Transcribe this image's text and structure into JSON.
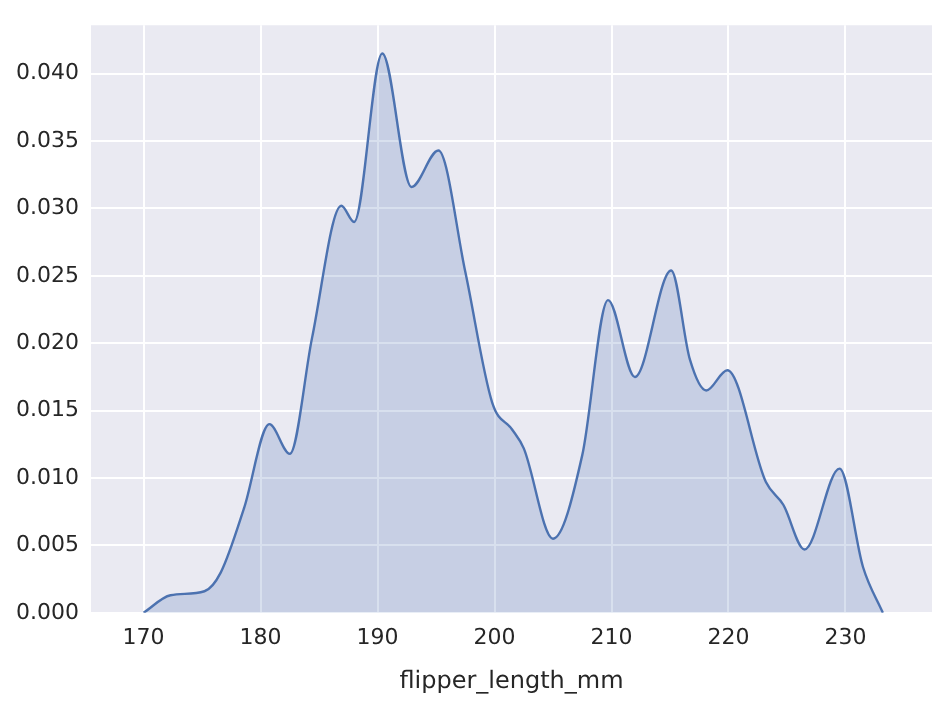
{
  "chart_data": {
    "type": "area",
    "xlabel": "flipper_length_mm",
    "x": [
      170,
      172.3,
      175.2,
      176.6,
      178.6,
      180.75,
      182.5,
      184.4,
      186.9,
      188.0,
      190.4,
      192.9,
      195.2,
      197.5,
      199.8,
      201.5,
      202.5,
      205.0,
      207.5,
      209.7,
      212.0,
      215.1,
      216.7,
      218.1,
      219.9,
      223.2,
      224.7,
      226.5,
      229.5,
      231.5,
      233.2
    ],
    "series": [
      {
        "color": "#4c72b0",
        "values": [
          0,
          0.0013,
          0.0016,
          0.003,
          0.0078,
          0.014,
          0.0118,
          0.0204,
          0.0302,
          0.029,
          0.0415,
          0.0316,
          0.0343,
          0.0253,
          0.0156,
          0.0136,
          0.0122,
          0.0055,
          0.0117,
          0.0232,
          0.0175,
          0.0254,
          0.0188,
          0.0165,
          0.018,
          0.0097,
          0.008,
          0.0047,
          0.0107,
          0.0034,
          0
        ]
      }
    ],
    "xlim": [
      165.5,
      237.4
    ],
    "ylim": [
      0,
      0.0436
    ],
    "xticks": [
      170,
      180,
      190,
      200,
      210,
      220,
      230
    ],
    "yticks": [
      {
        "value": 0,
        "label": "0.000"
      },
      {
        "value": 0.005,
        "label": "0.005"
      },
      {
        "value": 0.01,
        "label": "0.010"
      },
      {
        "value": 0.015,
        "label": "0.015"
      },
      {
        "value": 0.02,
        "label": "0.020"
      },
      {
        "value": 0.025,
        "label": "0.025"
      },
      {
        "value": 0.03,
        "label": "0.030"
      },
      {
        "value": 0.035,
        "label": "0.035"
      },
      {
        "value": 0.04,
        "label": "0.040"
      }
    ],
    "grid": true
  }
}
